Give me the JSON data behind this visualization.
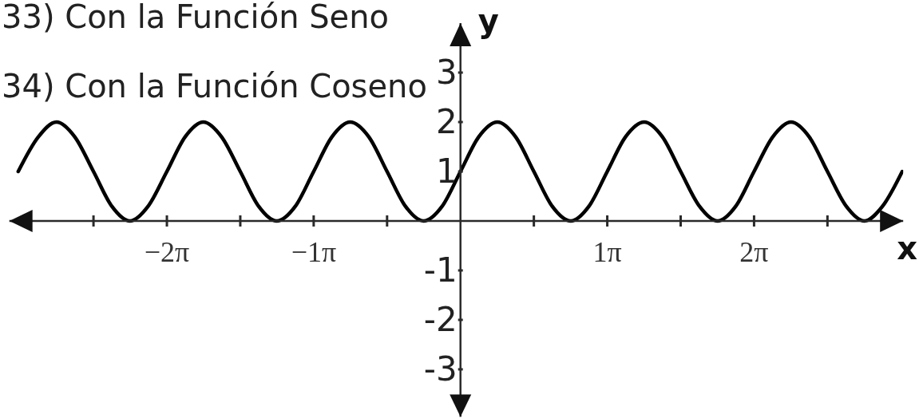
{
  "chart_data": {
    "type": "line",
    "annotations": [
      "33) Con la Función Seno",
      "34) Con la Función Coseno"
    ],
    "xlabel": "x",
    "ylabel": "y",
    "x": [
      -9.46,
      -9.03,
      -8.64,
      -8.25,
      -7.85,
      -7.46,
      -7.07,
      -6.68,
      -6.28,
      -5.89,
      -5.5,
      -5.11,
      -4.71,
      -4.32,
      -3.93,
      -3.53,
      -3.14,
      -2.75,
      -2.36,
      -1.96,
      -1.57,
      -1.18,
      -0.79,
      -0.39,
      0,
      0.39,
      0.79,
      1.18,
      1.57,
      1.96,
      2.36,
      2.75,
      3.14,
      3.53,
      3.93,
      4.32,
      4.71,
      5.11,
      5.5,
      5.89,
      6.28,
      6.68,
      7.07,
      7.46,
      7.85,
      8.25,
      8.64,
      9.03,
      9.45
    ],
    "series": [
      {
        "color": "#000000",
        "values": [
          1.0,
          1.7,
          2,
          1.7,
          1,
          0.3,
          0,
          0.3,
          1,
          1.7,
          2,
          1.7,
          1,
          0.3,
          0,
          0.3,
          1,
          1.7,
          2,
          1.7,
          1,
          0.3,
          0,
          0.3,
          1,
          1.7,
          2,
          1.7,
          1,
          0.3,
          0,
          0.3,
          1,
          1.7,
          2,
          1.7,
          1,
          0.3,
          0,
          0.3,
          1,
          1.7,
          2,
          1.7,
          1,
          0.3,
          0,
          0.3,
          1.0
        ]
      }
    ],
    "xlim": [
      -9.65,
      9.47
    ],
    "ylim": [
      -3.96,
      4.0
    ],
    "xticks": [
      {
        "value": -7.85,
        "label": null
      },
      {
        "value": -6.28,
        "label": "−2π"
      },
      {
        "value": -4.71,
        "label": null
      },
      {
        "value": -3.14,
        "label": "−1π"
      },
      {
        "value": -1.57,
        "label": null
      },
      {
        "value": 1.57,
        "label": null
      },
      {
        "value": 3.14,
        "label": "1π"
      },
      {
        "value": 4.71,
        "label": null
      },
      {
        "value": 6.28,
        "label": "2π"
      },
      {
        "value": 7.85,
        "label": null
      }
    ],
    "yticks": [
      -3,
      -2,
      -1,
      1,
      2,
      3
    ],
    "marker": "none",
    "line_style": "solid"
  }
}
